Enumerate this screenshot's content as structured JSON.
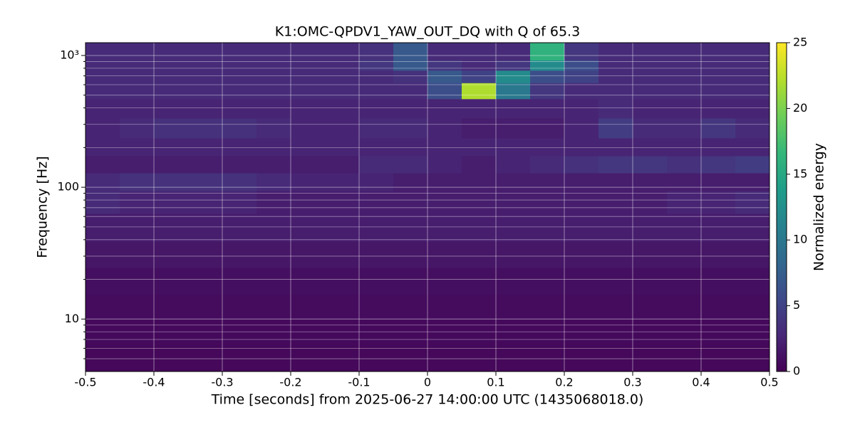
{
  "chart_data": {
    "type": "heatmap",
    "title": "K1:OMC-QPDV1_YAW_OUT_DQ with Q of 65.3",
    "xlabel": "Time [seconds] from 2025-06-27 14:00:00 UTC (1435068018.0)",
    "ylabel": "Frequency [Hz]",
    "colorbar_label": "Normalized energy",
    "xlim": [
      -0.5,
      0.5
    ],
    "xticks": [
      -0.5,
      -0.4,
      -0.3,
      -0.2,
      -0.1,
      0,
      0.1,
      0.2,
      0.3,
      0.4,
      0.5
    ],
    "ylim": [
      4,
      1250
    ],
    "log_y": true,
    "yticks": [
      10,
      100,
      {
        "value": 1000,
        "label": "10³"
      }
    ],
    "yminorticks": [
      5,
      6,
      7,
      8,
      9,
      20,
      30,
      40,
      50,
      60,
      70,
      80,
      90,
      200,
      300,
      400,
      500,
      600,
      700,
      800,
      900
    ],
    "grid": true,
    "clim": [
      0,
      25
    ],
    "cticks": [
      0,
      5,
      10,
      15,
      20,
      25
    ],
    "colorscale": [
      "#440154",
      "#482878",
      "#3e4989",
      "#31688e",
      "#26828e",
      "#1f9e89",
      "#35b779",
      "#6ece58",
      "#b5de2b",
      "#fde725"
    ],
    "x": [
      -0.475,
      -0.425,
      -0.375,
      -0.325,
      -0.275,
      -0.225,
      -0.175,
      -0.125,
      -0.075,
      -0.025,
      0.025,
      0.075,
      0.125,
      0.175,
      0.225,
      0.275,
      0.325,
      0.375,
      0.425,
      0.475
    ],
    "y": [
      5,
      8,
      12,
      20,
      30,
      50,
      80,
      110,
      150,
      200,
      280,
      400,
      550,
      700,
      850,
      1000
    ],
    "z": [
      [
        0.5,
        0.5,
        0.5,
        0.5,
        0.5,
        0.5,
        0.5,
        0.5,
        0.5,
        0.5,
        0.5,
        0.5,
        0.5,
        0.5,
        0.5,
        0.5,
        0.5,
        0.5,
        0.5,
        0.5
      ],
      [
        0.6,
        0.6,
        0.6,
        0.6,
        0.6,
        0.6,
        0.6,
        0.6,
        0.6,
        0.6,
        0.6,
        0.6,
        0.6,
        0.6,
        0.6,
        0.6,
        0.6,
        0.6,
        0.6,
        0.6
      ],
      [
        0.8,
        0.8,
        0.8,
        0.8,
        0.8,
        0.8,
        0.8,
        0.8,
        0.8,
        0.8,
        0.8,
        0.8,
        0.8,
        0.8,
        0.8,
        0.8,
        0.8,
        0.8,
        0.8,
        0.8
      ],
      [
        1,
        1,
        1,
        1,
        1,
        1,
        1,
        1,
        1,
        1,
        1,
        1,
        1,
        1,
        1,
        1,
        1,
        1,
        1,
        1
      ],
      [
        1.5,
        1.5,
        1.5,
        1.5,
        1.5,
        1.5,
        1.5,
        1.5,
        1.5,
        1.5,
        1.5,
        1.5,
        1.5,
        1.5,
        1.5,
        1.5,
        1.5,
        1.5,
        1.5,
        1.5
      ],
      [
        2,
        2,
        2,
        2,
        2,
        2,
        2,
        2,
        2,
        2,
        2,
        2,
        2,
        2,
        2,
        2,
        2,
        2,
        2,
        2
      ],
      [
        3,
        2.5,
        2.5,
        2.5,
        2.5,
        2,
        2,
        2,
        2,
        2,
        2,
        2,
        2,
        2,
        2,
        2,
        2,
        2.5,
        2.5,
        3
      ],
      [
        3,
        3.5,
        3.5,
        3.5,
        3.5,
        3,
        2.5,
        2.5,
        2.5,
        2,
        2,
        2,
        2,
        2,
        2,
        2,
        2,
        2,
        2,
        2
      ],
      [
        2,
        2,
        2,
        2,
        2,
        2,
        2,
        2,
        3,
        3,
        2.5,
        2,
        2.5,
        3,
        3.5,
        4,
        4,
        3.5,
        4,
        4.5
      ],
      [
        2.5,
        2.5,
        2.5,
        2.5,
        2.5,
        2.5,
        2.5,
        2.5,
        2.5,
        2.5,
        2.5,
        2.5,
        2.5,
        2.5,
        2.5,
        2.5,
        2.5,
        2.5,
        2.5,
        2.5
      ],
      [
        2.5,
        3,
        3.5,
        3.5,
        3.5,
        3,
        2.5,
        2.5,
        3,
        3,
        2.5,
        2,
        2,
        2,
        2.5,
        4.5,
        3,
        3,
        4,
        3
      ],
      [
        2.5,
        2.5,
        2.5,
        2.5,
        2.5,
        2.5,
        2.5,
        2.5,
        2.5,
        2.5,
        2.5,
        2.5,
        2.5,
        2.5,
        2.5,
        3,
        2.5,
        2.5,
        2.5,
        2.5
      ],
      [
        3,
        3,
        3,
        3,
        3,
        3,
        3,
        3,
        3,
        3,
        6,
        22,
        10,
        4,
        3,
        3,
        3,
        3,
        3,
        3
      ],
      [
        3,
        3,
        3,
        3,
        3,
        3,
        3,
        3,
        3,
        3.5,
        7,
        5,
        12,
        6,
        5,
        3,
        3,
        3,
        3,
        3
      ],
      [
        3,
        3,
        3,
        3,
        3,
        3,
        3,
        3,
        4,
        7,
        4,
        3,
        4,
        12,
        6,
        3,
        3,
        3,
        3,
        3
      ],
      [
        3,
        3,
        3,
        3,
        3,
        3,
        3,
        3,
        3.5,
        7,
        3,
        3,
        3,
        16,
        4,
        3,
        3,
        3,
        3,
        3
      ]
    ]
  }
}
